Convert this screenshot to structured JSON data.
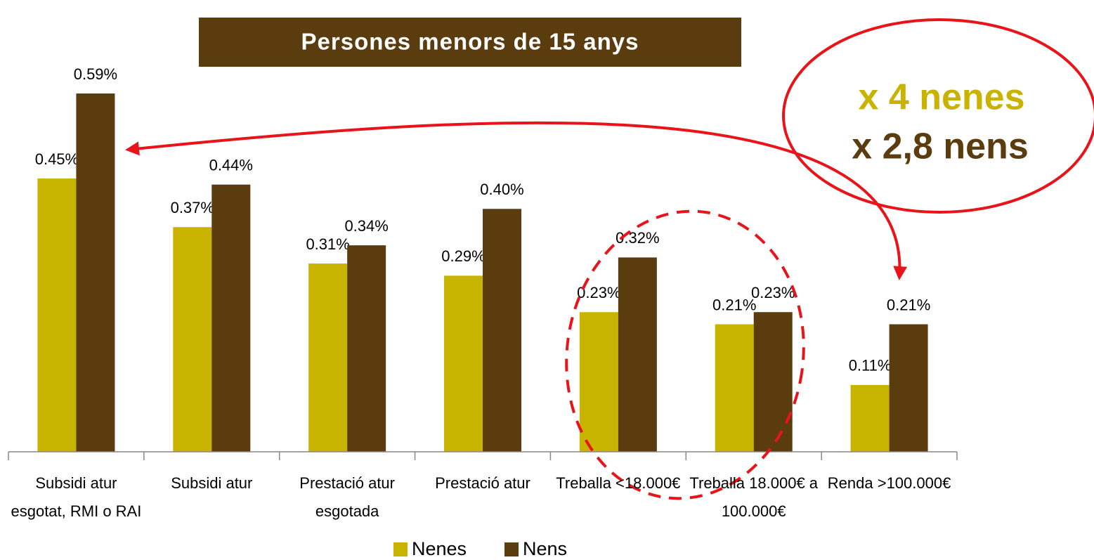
{
  "chart_data": {
    "type": "bar",
    "title": "Persones menors de 15 anys",
    "annotations": [
      "x 4 nenes",
      "x 2,8 nens"
    ],
    "categories": [
      "Subsidi atur esgotat, RMI o RAI",
      "Subsidi atur",
      "Prestació atur esgotada",
      "Prestació atur",
      "Treballa <18.000€",
      "Treballa 18.000€ a 100.000€",
      "Renda >100.000€"
    ],
    "series": [
      {
        "name": "Nenes",
        "color": "#c8b400",
        "values": [
          0.45,
          0.37,
          0.31,
          0.29,
          0.23,
          0.21,
          0.11
        ],
        "value_labels": [
          "0.45%",
          "0.37%",
          "0.31%",
          "0.29%",
          "0.23%",
          "0.21%",
          "0.11%"
        ]
      },
      {
        "name": "Nens",
        "color": "#5a3c0f",
        "values": [
          0.59,
          0.44,
          0.34,
          0.4,
          0.32,
          0.23,
          0.21
        ],
        "value_labels": [
          "0.59%",
          "0.44%",
          "0.34%",
          "0.40%",
          "0.32%",
          "0.23%",
          "0.21%"
        ]
      }
    ],
    "ylim": [
      0,
      0.7
    ]
  }
}
